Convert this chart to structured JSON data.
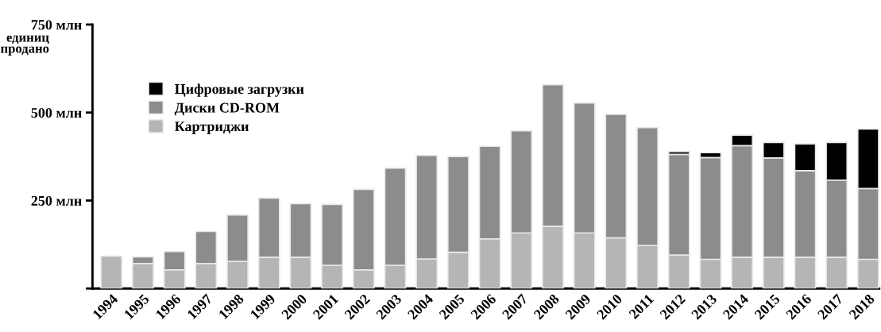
{
  "chart_data": {
    "type": "bar",
    "stacked": true,
    "ylabel": "единиц\nпродано",
    "categories": [
      "1994",
      "1995",
      "1996",
      "1997",
      "1998",
      "1999",
      "2000",
      "2001",
      "2002",
      "2003",
      "2004",
      "2005",
      "2006",
      "2007",
      "2008",
      "2009",
      "2010",
      "2011",
      "2012",
      "2013",
      "2014",
      "2015",
      "2016",
      "2017",
      "2018"
    ],
    "series": [
      {
        "name": "Картриджи",
        "color": "#b5b5b5",
        "values": [
          92,
          71,
          53,
          71,
          77,
          89,
          89,
          66,
          53,
          66,
          84,
          103,
          141,
          158,
          177,
          158,
          144,
          122,
          95,
          83,
          89,
          89,
          89,
          89,
          83
        ]
      },
      {
        "name": "Диски CD-ROM",
        "color": "#8c8c8c",
        "values": [
          null,
          19,
          52,
          91,
          132,
          168,
          152,
          173,
          229,
          276,
          294,
          272,
          263,
          290,
          402,
          369,
          351,
          335,
          286,
          289,
          317,
          282,
          246,
          219,
          201
        ]
      },
      {
        "name": "Цифровые загрузки",
        "color": "#000000",
        "values": [
          null,
          null,
          null,
          null,
          null,
          null,
          null,
          null,
          null,
          null,
          null,
          null,
          null,
          null,
          null,
          null,
          null,
          null,
          8,
          14,
          30,
          44,
          76,
          107,
          169
        ]
      }
    ],
    "ylim": [
      0,
      750
    ],
    "yticks": [
      {
        "value": 0,
        "label": null
      },
      {
        "value": 250,
        "label": "250 млн"
      },
      {
        "value": 500,
        "label": "500 млн"
      },
      {
        "value": 750,
        "label": "750 млн"
      }
    ],
    "grid": false,
    "legend": "top left"
  }
}
